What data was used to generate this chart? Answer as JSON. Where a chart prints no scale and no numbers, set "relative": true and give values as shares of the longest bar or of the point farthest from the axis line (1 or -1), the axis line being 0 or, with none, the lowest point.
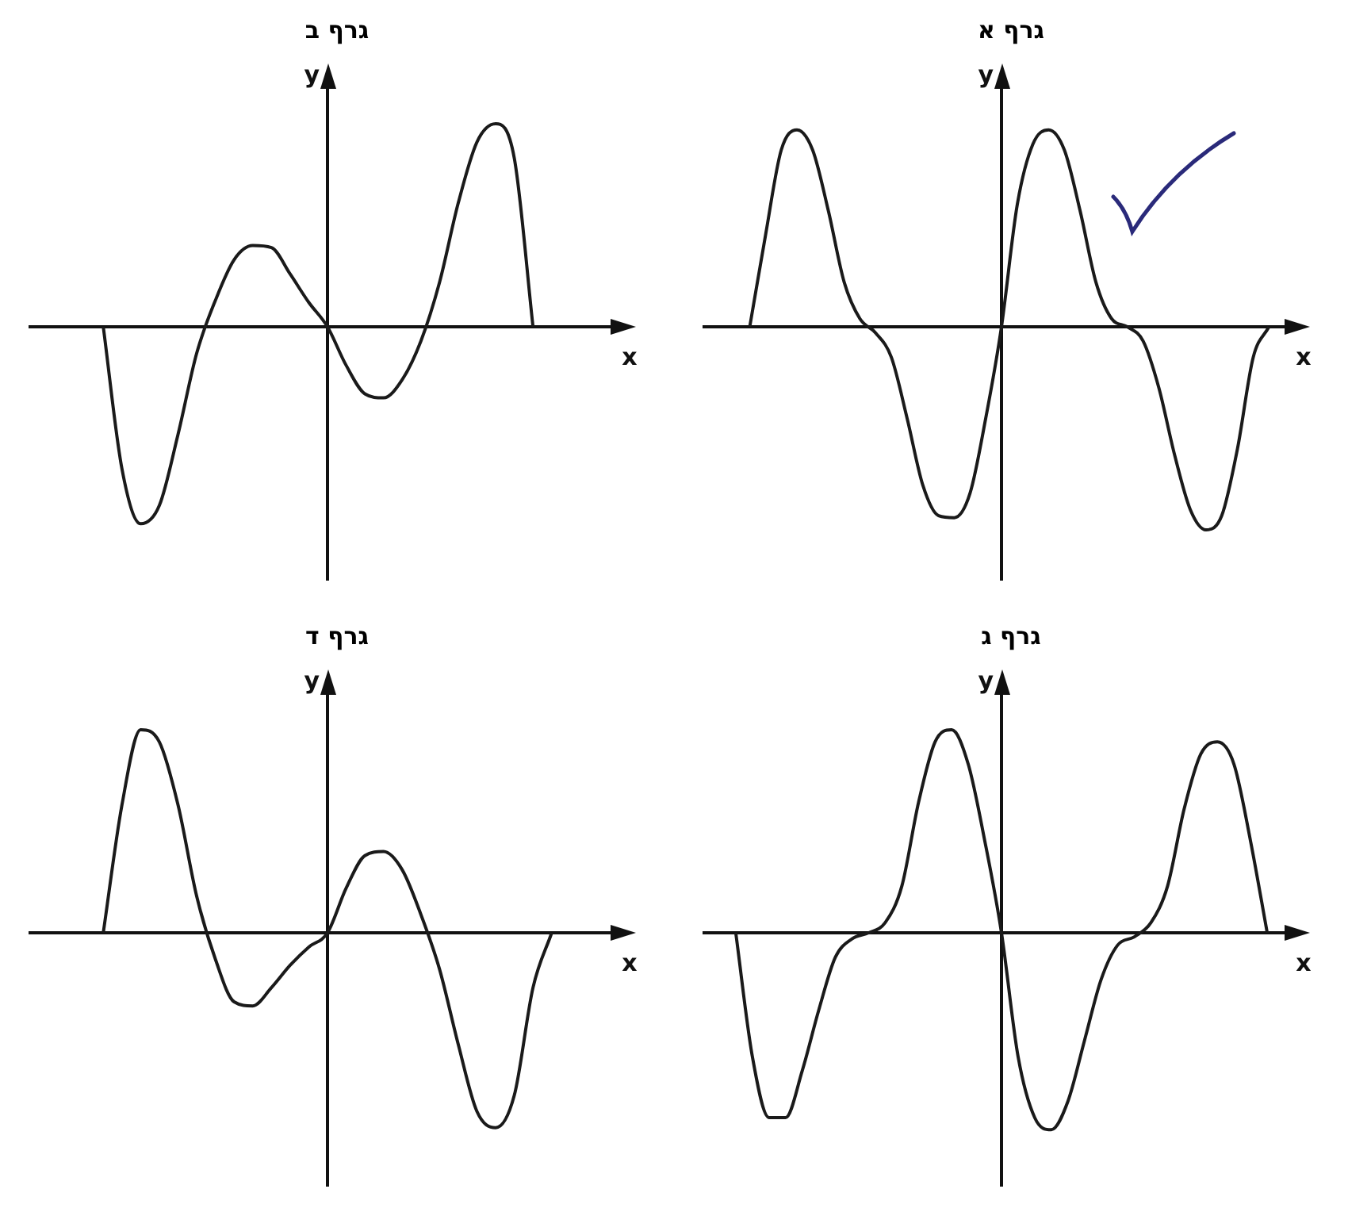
{
  "chart_data": [
    {
      "type": "line",
      "title": "גרף ב",
      "xlabel": "x",
      "ylabel": "y",
      "relative": true,
      "marker": "none",
      "color": "#1a1a1a",
      "categories": [
        null,
        null,
        null,
        null,
        null,
        null,
        null,
        null,
        null,
        null,
        null,
        null,
        null,
        null,
        null,
        null,
        null,
        null,
        null,
        null,
        null,
        null,
        null,
        null,
        null,
        null,
        null,
        null,
        null,
        null,
        null,
        null,
        null
      ],
      "values": [
        null,
        null,
        null,
        null,
        0,
        -0.7,
        -0.97,
        -0.88,
        -0.53,
        -0.13,
        0.13,
        0.33,
        0.4,
        0.39,
        0.26,
        0.12,
        0,
        -0.19,
        -0.33,
        -0.35,
        -0.26,
        -0.07,
        0.22,
        0.61,
        0.91,
        1,
        0.83,
        0,
        null,
        null,
        null,
        null,
        null
      ]
    },
    {
      "type": "line",
      "title": "גרף א",
      "xlabel": "x",
      "ylabel": "y",
      "relative": true,
      "marker": "none",
      "color": "#1a1a1a",
      "categories": [
        null,
        null,
        null,
        null,
        null,
        null,
        null,
        null,
        null,
        null,
        null,
        null,
        null,
        null,
        null,
        null,
        null,
        null,
        null,
        null,
        null,
        null,
        null,
        null,
        null,
        null,
        null,
        null,
        null,
        null,
        null,
        null,
        null,
        null,
        null,
        null,
        null,
        null,
        null
      ],
      "values": [
        null,
        null,
        null,
        0,
        0.45,
        0.87,
        0.97,
        0.87,
        0.57,
        0.22,
        0.04,
        -0.03,
        -0.15,
        -0.45,
        -0.78,
        -0.93,
        -0.94,
        -0.82,
        -0.45,
        0,
        0.6,
        0.9,
        0.97,
        0.87,
        0.57,
        0.22,
        0.04,
        0,
        -0.07,
        -0.3,
        -0.63,
        -0.9,
        -1,
        -0.93,
        -0.6,
        -0.15,
        0,
        null,
        null
      ]
    },
    {
      "type": "line",
      "title": "גרף ד",
      "xlabel": "x",
      "ylabel": "y",
      "relative": true,
      "marker": "none",
      "color": "#1a1a1a",
      "categories": [
        null,
        null,
        null,
        null,
        null,
        null,
        null,
        null,
        null,
        null,
        null,
        null,
        null,
        null,
        null,
        null,
        null,
        null,
        null,
        null,
        null,
        null,
        null,
        null,
        null,
        null,
        null,
        null,
        null,
        null,
        null,
        null,
        null
      ],
      "values": [
        null,
        null,
        null,
        null,
        0,
        0.63,
        1,
        0.94,
        0.63,
        0.18,
        -0.13,
        -0.34,
        -0.36,
        -0.27,
        -0.16,
        -0.07,
        0,
        0.22,
        0.38,
        0.4,
        0.31,
        0.09,
        -0.18,
        -0.55,
        -0.88,
        -0.96,
        -0.8,
        -0.27,
        0,
        null,
        null,
        null,
        null
      ]
    },
    {
      "type": "line",
      "title": "גרף ג",
      "xlabel": "x",
      "ylabel": "y",
      "relative": true,
      "marker": "none",
      "color": "#1a1a1a",
      "categories": [
        null,
        null,
        null,
        null,
        null,
        null,
        null,
        null,
        null,
        null,
        null,
        null,
        null,
        null,
        null,
        null,
        null,
        null,
        null,
        null,
        null,
        null,
        null,
        null,
        null,
        null,
        null,
        null,
        null,
        null,
        null,
        null,
        null,
        null,
        null,
        null,
        null
      ],
      "values": [
        null,
        null,
        0,
        -0.61,
        -0.91,
        -0.91,
        -0.68,
        -0.38,
        -0.12,
        -0.03,
        0,
        0.05,
        0.23,
        0.64,
        0.94,
        1,
        0.83,
        0.45,
        0,
        -0.61,
        -0.91,
        -0.97,
        -0.83,
        -0.53,
        -0.23,
        -0.06,
        -0.02,
        0.05,
        0.23,
        0.61,
        0.88,
        0.94,
        0.83,
        0.45,
        0,
        null,
        null
      ]
    }
  ]
}
